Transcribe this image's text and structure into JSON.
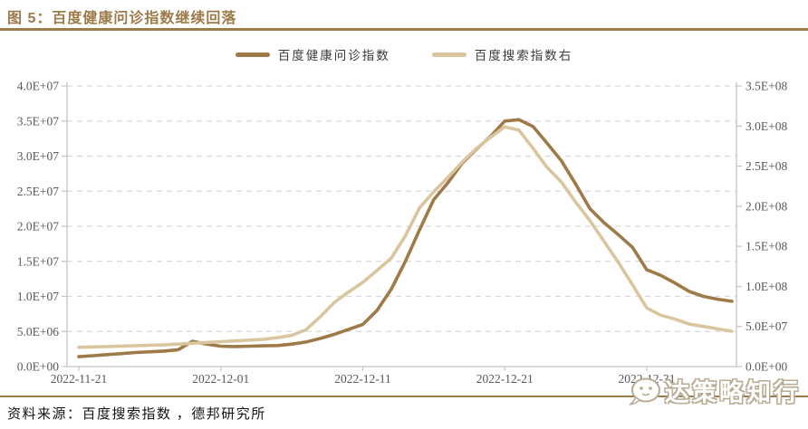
{
  "figure": {
    "title": "图 5：百度健康问诊指数继续回落",
    "source": "资料来源：百度搜索指数 ，德邦研究所",
    "watermark": "达策略知行"
  },
  "colors": {
    "title_brown": "#9c7a4a",
    "rule_brown": "#9c7a4a",
    "series_dark_brown": "#9f7a49",
    "series_light_tan": "#d9c69e",
    "axis_text_gray": "#595959",
    "gridline_gray": "#d9d9d9",
    "axis_line_gray": "#c4c4c4",
    "source_text": "#141414",
    "watermark_outline": "#b9ab93"
  },
  "chart_data": {
    "type": "line",
    "title": "百度健康问诊指数继续回落",
    "grid": "dashed-horizontal",
    "legend_position": "top-center",
    "x": [
      "2022-11-21",
      "2022-11-22",
      "2022-11-23",
      "2022-11-24",
      "2022-11-25",
      "2022-11-26",
      "2022-11-27",
      "2022-11-28",
      "2022-11-29",
      "2022-11-30",
      "2022-12-01",
      "2022-12-02",
      "2022-12-03",
      "2022-12-04",
      "2022-12-05",
      "2022-12-06",
      "2022-12-07",
      "2022-12-08",
      "2022-12-09",
      "2022-12-10",
      "2022-12-11",
      "2022-12-12",
      "2022-12-13",
      "2022-12-14",
      "2022-12-15",
      "2022-12-16",
      "2022-12-17",
      "2022-12-18",
      "2022-12-19",
      "2022-12-20",
      "2022-12-21",
      "2022-12-22",
      "2022-12-23",
      "2022-12-24",
      "2022-12-25",
      "2022-12-26",
      "2022-12-27",
      "2022-12-28",
      "2022-12-29",
      "2022-12-30",
      "2022-12-31",
      "2023-01-01",
      "2023-01-02",
      "2023-01-03",
      "2023-01-04",
      "2023-01-05",
      "2023-01-06"
    ],
    "x_tick_labels": [
      "2022-11-21",
      "2022-12-01",
      "2022-12-11",
      "2022-12-21",
      "2022-12-31"
    ],
    "x_tick_indices": [
      0,
      10,
      20,
      30,
      40
    ],
    "left_axis": {
      "min": 0,
      "max": 40000000,
      "tick_labels": [
        "0.0E+00",
        "5.0E+06",
        "1.0E+07",
        "1.5E+07",
        "2.0E+07",
        "2.5E+07",
        "3.0E+07",
        "3.5E+07",
        "4.0E+07"
      ]
    },
    "right_axis": {
      "min": 0,
      "max": 350000000,
      "tick_labels": [
        "0.0E+00",
        "5.0E+07",
        "1.0E+08",
        "1.5E+08",
        "2.0E+08",
        "2.5E+08",
        "3.0E+08",
        "3.5E+08"
      ]
    },
    "series": [
      {
        "name": "百度健康问诊指数",
        "axis": "left",
        "color": "#9f7a49",
        "values": [
          1400000,
          1550000,
          1700000,
          1850000,
          2000000,
          2100000,
          2200000,
          2400000,
          3600000,
          3200000,
          2900000,
          2850000,
          2900000,
          2950000,
          3000000,
          3200000,
          3500000,
          4000000,
          4600000,
          5300000,
          6000000,
          8000000,
          11000000,
          15000000,
          19500000,
          23800000,
          26200000,
          29000000,
          31000000,
          32800000,
          35000000,
          35200000,
          34200000,
          31800000,
          29300000,
          26000000,
          22500000,
          20500000,
          18800000,
          17000000,
          13800000,
          13000000,
          11900000,
          10700000,
          10000000,
          9600000,
          9300000
        ]
      },
      {
        "name": "百度搜索指数右",
        "axis": "right",
        "color": "#d9c69e",
        "values": [
          24000000,
          24500000,
          25000000,
          25500000,
          26000000,
          26500000,
          27000000,
          28000000,
          29000000,
          30000000,
          31000000,
          32000000,
          33000000,
          34000000,
          36000000,
          39000000,
          46000000,
          62000000,
          80000000,
          93000000,
          105000000,
          120000000,
          135000000,
          163000000,
          198000000,
          218000000,
          236000000,
          255000000,
          272000000,
          286000000,
          299000000,
          295000000,
          272000000,
          248000000,
          230000000,
          205000000,
          182000000,
          156000000,
          130000000,
          102000000,
          73000000,
          64000000,
          59000000,
          53000000,
          50000000,
          47000000,
          44000000
        ]
      }
    ]
  }
}
